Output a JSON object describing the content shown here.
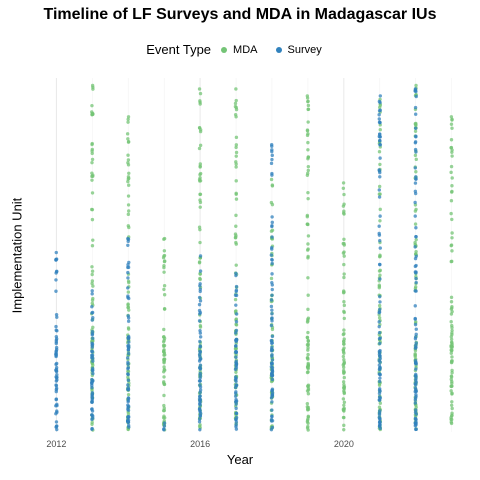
{
  "chart_data": {
    "type": "scatter",
    "title": "Timeline of LF Surveys and MDA in Madagascar IUs",
    "xlabel": "Year",
    "ylabel": "Implementation Unit",
    "x_ticks": [
      2012,
      2016,
      2020
    ],
    "xlim": [
      2011.6,
      2023.4
    ],
    "grid": "vertical lines",
    "legend": {
      "title": "Event Type",
      "placement": "top"
    },
    "colors": {
      "MDA": "#74c476",
      "Survey": "#3182bd"
    },
    "series": [
      {
        "name": "MDA",
        "columns": [
          {
            "year": 2013,
            "max_iu": 0.99
          },
          {
            "year": 2014,
            "max_iu": 0.9
          },
          {
            "year": 2015,
            "max_iu": 0.55
          },
          {
            "year": 2016,
            "max_iu": 0.98
          },
          {
            "year": 2017,
            "max_iu": 0.98
          },
          {
            "year": 2018,
            "max_iu": 0.72
          },
          {
            "year": 2019,
            "max_iu": 0.96
          },
          {
            "year": 2020,
            "max_iu": 0.71
          },
          {
            "year": 2021,
            "max_iu": 0.95
          },
          {
            "year": 2022,
            "max_iu": 0.99
          },
          {
            "year": 2023,
            "max_iu": 0.9
          }
        ]
      },
      {
        "name": "Survey",
        "columns": [
          {
            "year": 2012,
            "max_iu": 0.51
          },
          {
            "year": 2013,
            "max_iu": 0.4
          },
          {
            "year": 2014,
            "max_iu": 0.55
          },
          {
            "year": 2015,
            "max_iu": 0.02
          },
          {
            "year": 2016,
            "max_iu": 0.5
          },
          {
            "year": 2017,
            "max_iu": 0.45
          },
          {
            "year": 2018,
            "max_iu": 0.82
          },
          {
            "year": 2021,
            "max_iu": 0.96
          },
          {
            "year": 2022,
            "max_iu": 0.98
          }
        ]
      }
    ]
  }
}
